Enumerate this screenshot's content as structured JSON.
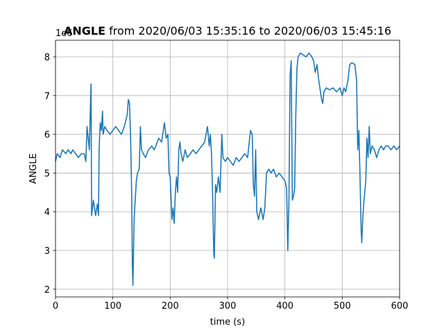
{
  "chart_data": {
    "type": "line",
    "title_bold": "ANGLE",
    "title": "from 2020/06/03 15:35:16 to 2020/06/03 15:45:16",
    "x_label": "time (s)",
    "y_label": "ANGLE",
    "y_offset_label": "1e6",
    "xlim": [
      0,
      600
    ],
    "ylim": [
      1.8,
      8.43
    ],
    "xticks": [
      0,
      100,
      200,
      300,
      400,
      500,
      600
    ],
    "yticks": [
      2,
      3,
      4,
      5,
      6,
      7,
      8
    ],
    "grid": true,
    "series": [
      {
        "name": "ANGLE",
        "color": "#1f77b4",
        "x": [
          0,
          3,
          8,
          12,
          18,
          22,
          27,
          30,
          35,
          40,
          45,
          50,
          53,
          55,
          57,
          59,
          61,
          62,
          63,
          66,
          70,
          73,
          75,
          76,
          78,
          80,
          82,
          83,
          86,
          90,
          95,
          100,
          105,
          110,
          115,
          120,
          125,
          127,
          129,
          131,
          133,
          134,
          135,
          137,
          139,
          141,
          143,
          146,
          148,
          150,
          153,
          157,
          162,
          168,
          172,
          175,
          180,
          185,
          190,
          193,
          196,
          198,
          200,
          203,
          205,
          207,
          209,
          211,
          213,
          215,
          217,
          219,
          222,
          226,
          230,
          235,
          240,
          245,
          250,
          255,
          260,
          265,
          268,
          270,
          272,
          274,
          276,
          277,
          279,
          281,
          284,
          287,
          290,
          292,
          296,
          300,
          305,
          310,
          315,
          320,
          325,
          330,
          335,
          340,
          343,
          345,
          347,
          349,
          351,
          354,
          358,
          362,
          365,
          368,
          372,
          376,
          380,
          385,
          390,
          395,
          400,
          403,
          405,
          407,
          409,
          411,
          413,
          415,
          417,
          419,
          421,
          423,
          427,
          432,
          437,
          442,
          447,
          450,
          453,
          456,
          459,
          462,
          464,
          466,
          468,
          472,
          478,
          484,
          490,
          496,
          500,
          503,
          506,
          510,
          513,
          517,
          522,
          525,
          527,
          529,
          531,
          533,
          534,
          536,
          538,
          541,
          543,
          545,
          547,
          549,
          552,
          556,
          560,
          564,
          568,
          572,
          576,
          580,
          585,
          590,
          595,
          600
        ],
        "values": [
          5.3,
          5.5,
          5.4,
          5.6,
          5.5,
          5.6,
          5.5,
          5.6,
          5.5,
          5.4,
          5.5,
          5.5,
          5.3,
          6.2,
          5.9,
          5.6,
          6.8,
          7.3,
          3.9,
          4.3,
          3.9,
          4.2,
          3.9,
          5.6,
          6.3,
          6.1,
          6.6,
          6.0,
          6.2,
          6.1,
          6.0,
          6.1,
          6.2,
          6.1,
          6.0,
          6.2,
          6.5,
          6.9,
          6.8,
          5.9,
          4.3,
          2.6,
          2.1,
          3.8,
          4.3,
          4.8,
          5.0,
          5.1,
          6.2,
          5.6,
          5.5,
          5.4,
          5.6,
          5.7,
          5.6,
          5.7,
          5.9,
          5.8,
          6.3,
          5.9,
          6.0,
          5.0,
          4.9,
          3.8,
          4.1,
          3.7,
          4.5,
          4.9,
          4.5,
          5.6,
          5.8,
          5.5,
          5.3,
          5.6,
          5.4,
          5.5,
          5.6,
          5.5,
          5.6,
          5.7,
          5.8,
          6.2,
          5.7,
          6.0,
          5.5,
          4.4,
          2.9,
          2.8,
          4.7,
          4.5,
          4.9,
          4.5,
          6.0,
          5.4,
          5.3,
          5.4,
          5.3,
          5.2,
          5.4,
          5.3,
          5.4,
          5.5,
          5.4,
          6.1,
          6.0,
          4.7,
          4.4,
          5.6,
          4.0,
          3.8,
          4.1,
          3.8,
          4.1,
          5.0,
          5.1,
          5.0,
          5.1,
          4.9,
          5.0,
          4.9,
          4.8,
          4.6,
          3.0,
          4.2,
          7.5,
          7.9,
          4.3,
          4.4,
          4.6,
          6.5,
          7.7,
          8.0,
          8.1,
          8.05,
          8.0,
          8.1,
          8.0,
          7.9,
          7.6,
          7.8,
          7.4,
          7.1,
          6.9,
          6.8,
          7.1,
          7.2,
          7.15,
          7.2,
          7.1,
          7.2,
          7.0,
          7.2,
          7.1,
          7.4,
          7.8,
          7.85,
          7.8,
          7.4,
          5.6,
          6.1,
          4.9,
          3.5,
          3.2,
          3.9,
          4.3,
          4.8,
          5.9,
          5.4,
          6.2,
          5.5,
          5.7,
          5.6,
          5.4,
          5.6,
          5.7,
          5.6,
          5.7,
          5.7,
          5.6,
          5.7,
          5.6,
          5.7
        ]
      }
    ]
  }
}
